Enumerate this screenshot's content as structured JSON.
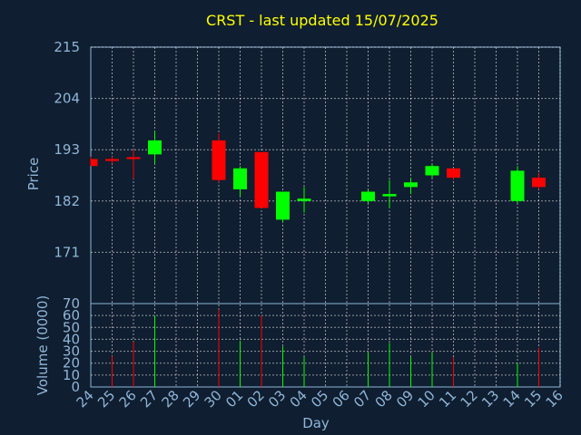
{
  "title": "CRST - last updated 15/07/2025",
  "colors": {
    "background": "#0f1e30",
    "up": "#00ff00",
    "down": "#ff0000",
    "grid": "#ffffff",
    "text": "#8fb6d8",
    "title": "#ffff00"
  },
  "chart_data": [
    {
      "type": "candlestick",
      "ylabel": "Price",
      "xlabel": "",
      "ylim": [
        160,
        215
      ],
      "yticks": [
        171,
        182,
        193,
        204,
        215
      ],
      "grid": true,
      "categories": [
        "24",
        "25",
        "26",
        "27",
        "28",
        "29",
        "30",
        "01",
        "02",
        "03",
        "04",
        "05",
        "06",
        "07",
        "08",
        "09",
        "10",
        "11",
        "12",
        "13",
        "14",
        "15",
        "16"
      ],
      "candles": [
        {
          "day": "24",
          "open": 191.0,
          "high": 191.5,
          "low": 189.5,
          "close": 189.5
        },
        {
          "day": "25",
          "open": 191.0,
          "high": 191.5,
          "low": 190.0,
          "close": 190.6
        },
        {
          "day": "26",
          "open": 191.4,
          "high": 193.0,
          "low": 186.8,
          "close": 191.0
        },
        {
          "day": "27",
          "open": 192.0,
          "high": 197.0,
          "low": 190.0,
          "close": 195.0
        },
        {
          "day": "30",
          "open": 195.0,
          "high": 196.5,
          "low": 186.0,
          "close": 186.5
        },
        {
          "day": "01",
          "open": 184.5,
          "high": 189.5,
          "low": 183.0,
          "close": 189.0
        },
        {
          "day": "02",
          "open": 192.5,
          "high": 192.5,
          "low": 180.5,
          "close": 180.5
        },
        {
          "day": "03",
          "open": 178.0,
          "high": 184.0,
          "low": 177.5,
          "close": 184.0
        },
        {
          "day": "04",
          "open": 182.0,
          "high": 185.0,
          "low": 179.5,
          "close": 182.5
        },
        {
          "day": "07",
          "open": 182.0,
          "high": 184.5,
          "low": 181.5,
          "close": 184.0
        },
        {
          "day": "08",
          "open": 183.0,
          "high": 186.5,
          "low": 180.5,
          "close": 183.5
        },
        {
          "day": "09",
          "open": 185.0,
          "high": 187.0,
          "low": 183.5,
          "close": 186.0
        },
        {
          "day": "10",
          "open": 187.5,
          "high": 190.0,
          "low": 187.0,
          "close": 189.5
        },
        {
          "day": "11",
          "open": 189.0,
          "high": 189.0,
          "low": 186.5,
          "close": 187.0
        },
        {
          "day": "14",
          "open": 182.0,
          "high": 189.5,
          "low": 181.5,
          "close": 188.5
        },
        {
          "day": "15",
          "open": 187.0,
          "high": 188.0,
          "low": 184.5,
          "close": 185.0
        }
      ]
    },
    {
      "type": "bar",
      "ylabel": "Volume (0000)",
      "xlabel": "Day",
      "ylim": [
        0,
        70
      ],
      "yticks": [
        0,
        10,
        20,
        30,
        40,
        50,
        60,
        70
      ],
      "grid": true,
      "categories": [
        "24",
        "25",
        "26",
        "27",
        "28",
        "29",
        "30",
        "01",
        "02",
        "03",
        "04",
        "05",
        "06",
        "07",
        "08",
        "09",
        "10",
        "11",
        "12",
        "13",
        "14",
        "15",
        "16"
      ],
      "values": [
        {
          "day": "25",
          "value": 26,
          "color": "down"
        },
        {
          "day": "26",
          "value": 38,
          "color": "down"
        },
        {
          "day": "27",
          "value": 60,
          "color": "up"
        },
        {
          "day": "30",
          "value": 65,
          "color": "down"
        },
        {
          "day": "01",
          "value": 39,
          "color": "up"
        },
        {
          "day": "02",
          "value": 60,
          "color": "down"
        },
        {
          "day": "03",
          "value": 34,
          "color": "up"
        },
        {
          "day": "04",
          "value": 25,
          "color": "up"
        },
        {
          "day": "07",
          "value": 29,
          "color": "up"
        },
        {
          "day": "08",
          "value": 37,
          "color": "up"
        },
        {
          "day": "09",
          "value": 25,
          "color": "up"
        },
        {
          "day": "10",
          "value": 29,
          "color": "up"
        },
        {
          "day": "11",
          "value": 25,
          "color": "down"
        },
        {
          "day": "14",
          "value": 20,
          "color": "up"
        },
        {
          "day": "15",
          "value": 33,
          "color": "down"
        }
      ]
    }
  ]
}
